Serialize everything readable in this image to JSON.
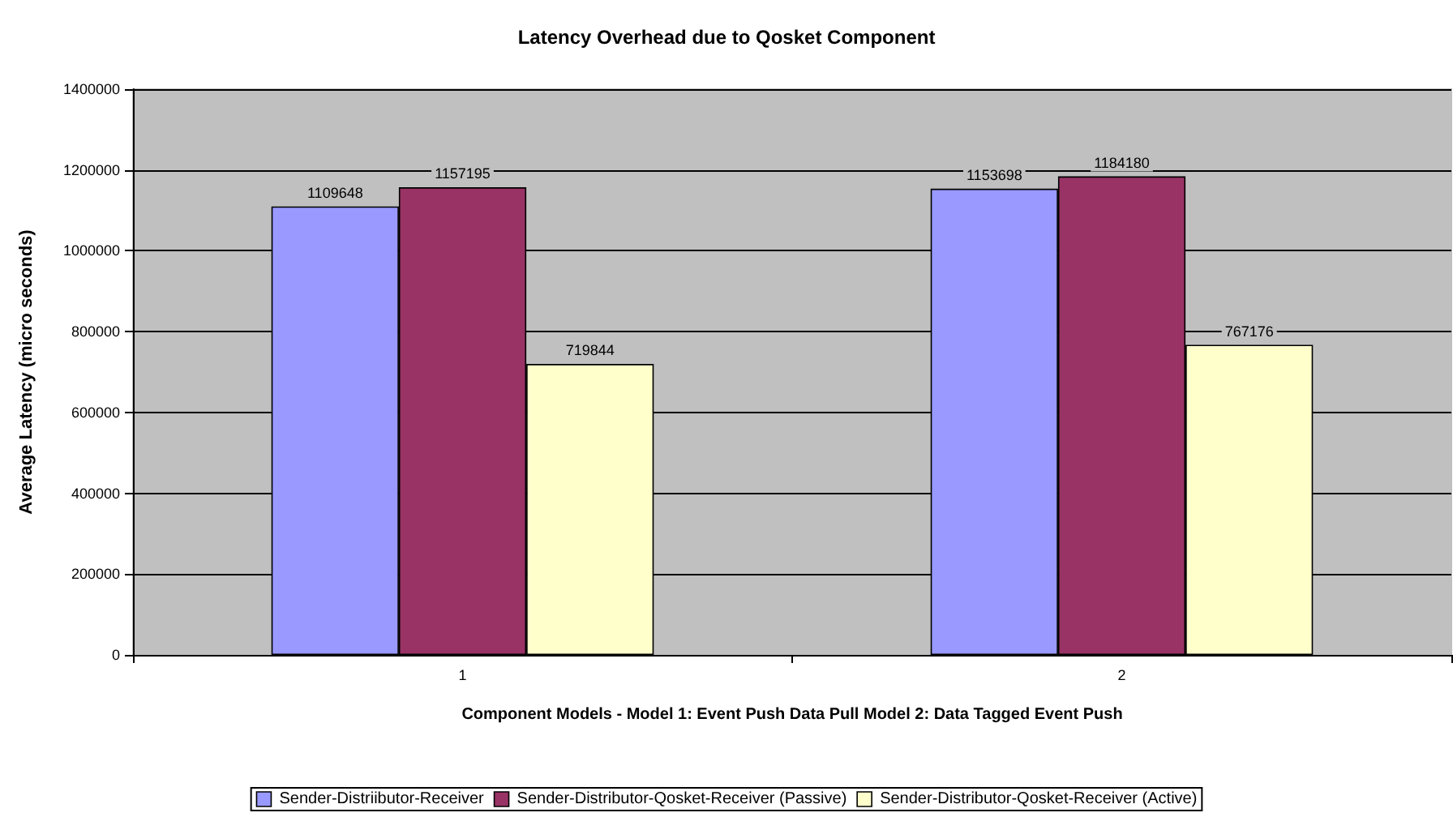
{
  "chart_data": {
    "type": "bar",
    "title": "Latency Overhead due to Qosket Component",
    "xlabel": "Component Models - Model 1: Event Push Data Pull Model 2: Data Tagged Event Push",
    "ylabel": "Average Latency (micro seconds)",
    "categories": [
      "1",
      "2"
    ],
    "series": [
      {
        "name": "Sender-Distriibutor-Receiver",
        "color": "#9999ff",
        "values": [
          1109648,
          1153698
        ]
      },
      {
        "name": "Sender-Distributor-Qosket-Receiver (Passive)",
        "color": "#993366",
        "values": [
          1157195,
          1184180
        ]
      },
      {
        "name": "Sender-Distributor-Qosket-Receiver (Active)",
        "color": "#ffffcc",
        "values": [
          719844,
          767176
        ]
      }
    ],
    "ylim": [
      0,
      1400000
    ],
    "yticks": [
      0,
      200000,
      400000,
      600000,
      800000,
      1000000,
      1200000,
      1400000
    ],
    "grid": "y",
    "legend": "bottom",
    "data_labels": true
  }
}
